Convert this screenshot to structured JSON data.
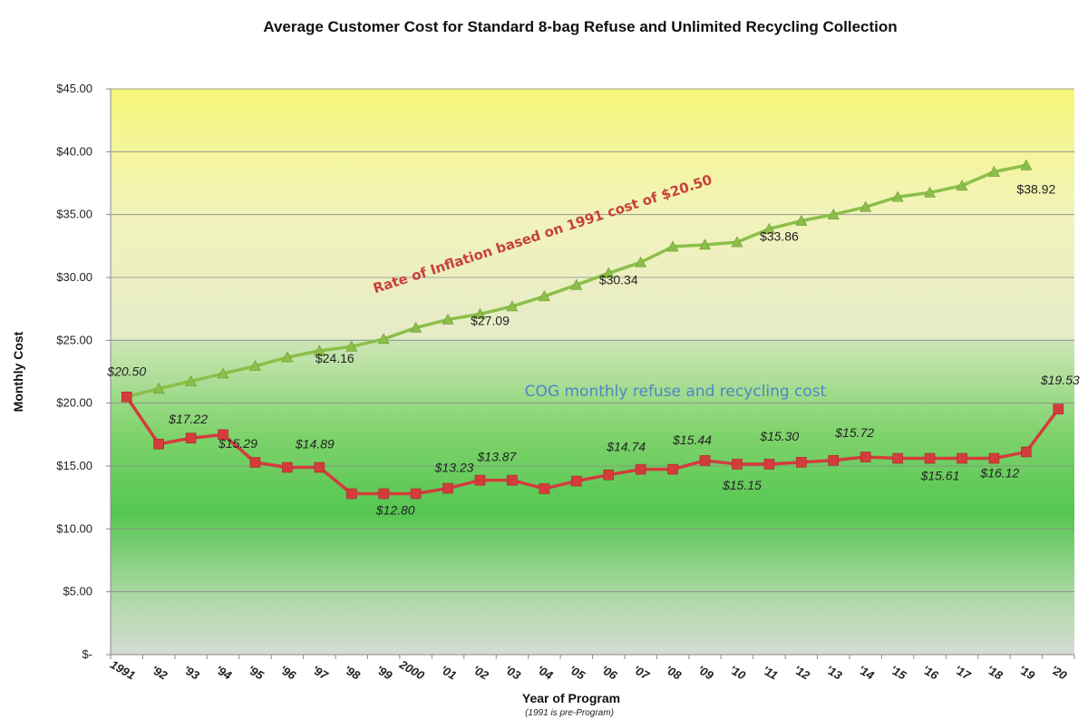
{
  "chart_data": {
    "type": "line",
    "title": "Average Customer Cost for Standard 8-bag Refuse and Unlimited Recycling Collection",
    "xlabel": "Year of Program",
    "xlabel_note": "(1991 is pre-Program)",
    "ylabel": "Monthly Cost",
    "ylim": [
      0,
      45
    ],
    "yticks": [
      0,
      5,
      10,
      15,
      20,
      25,
      30,
      35,
      40,
      45
    ],
    "ytick_labels": [
      "$-",
      "$5.00",
      "$10.00",
      "$15.00",
      "$20.00",
      "$25.00",
      "$30.00",
      "$35.00",
      "$40.00",
      "$45.00"
    ],
    "categories": [
      "1991",
      "'92",
      "'93",
      "'94",
      "'95",
      "'96",
      "'97",
      "'98",
      "'99",
      "2000",
      "'01",
      "'02",
      "'03",
      "'04",
      "'05",
      "'06",
      "'07",
      "'08",
      "'09",
      "'10",
      "'11",
      "'12",
      "'13",
      "'14",
      "'15",
      "'16",
      "'17",
      "'18",
      "'19",
      "'20"
    ],
    "grid": true,
    "series": [
      {
        "key": "inflation",
        "color": "#8cbf4a",
        "marker": "triangle",
        "values": [
          20.5,
          21.15,
          21.75,
          22.35,
          22.95,
          23.65,
          24.16,
          24.5,
          25.1,
          26.0,
          26.65,
          27.09,
          27.7,
          28.5,
          29.4,
          30.34,
          31.2,
          32.45,
          32.6,
          32.8,
          33.86,
          34.5,
          35.0,
          35.6,
          36.4,
          36.75,
          37.3,
          38.4,
          38.92,
          null
        ],
        "labels": [
          {
            "index": 6,
            "text": "$24.16"
          },
          {
            "index": 11,
            "text": "$27.09"
          },
          {
            "index": 15,
            "text": "$30.34"
          },
          {
            "index": 20,
            "text": "$33.86"
          },
          {
            "index": 28,
            "text": "$38.92"
          }
        ]
      },
      {
        "key": "cog",
        "color": "#d43c3c",
        "marker": "square",
        "values": [
          20.5,
          16.75,
          17.22,
          17.5,
          15.29,
          14.89,
          14.89,
          12.8,
          12.8,
          12.8,
          13.23,
          13.87,
          13.87,
          13.2,
          13.8,
          14.3,
          14.74,
          14.74,
          15.44,
          15.15,
          15.15,
          15.3,
          15.45,
          15.72,
          15.61,
          15.61,
          15.61,
          15.61,
          16.12,
          19.53
        ],
        "labels": [
          {
            "index": 0,
            "text": "$20.50"
          },
          {
            "index": 2,
            "text": "$17.22"
          },
          {
            "index": 4,
            "text": "$15.29"
          },
          {
            "index": 6,
            "text": "$14.89"
          },
          {
            "index": 8,
            "text": "$12.80"
          },
          {
            "index": 10,
            "text": "$13.23"
          },
          {
            "index": 12,
            "text": "$13.87"
          },
          {
            "index": 16,
            "text": "$14.74"
          },
          {
            "index": 18,
            "text": "$15.44"
          },
          {
            "index": 20,
            "text": "$15.15"
          },
          {
            "index": 21,
            "text": "$15.30"
          },
          {
            "index": 23,
            "text": "$15.72"
          },
          {
            "index": 26,
            "text": "$15.61"
          },
          {
            "index": 28,
            "text": "$16.12"
          },
          {
            "index": 29,
            "text": "$19.53"
          }
        ]
      }
    ],
    "annotations": [
      {
        "key": "inflation_note",
        "text": "Rate of Inflation based on 1991 cost of $20.50",
        "color": "#c8403c"
      },
      {
        "key": "cog_note",
        "text": "COG monthly refuse and recycling cost",
        "color": "#4e86c8"
      }
    ]
  }
}
